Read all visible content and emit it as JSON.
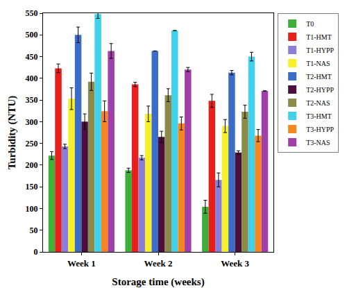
{
  "chart_data": {
    "type": "bar",
    "x_label": "Storage time (weeks)",
    "y_label": "Turbidity (NTU)",
    "categories": [
      "Week 1",
      "Week 2",
      "Week 3"
    ],
    "series": [
      {
        "name": "T0",
        "color": "#3fae3a",
        "values": [
          222,
          188,
          104
        ],
        "errors": [
          9,
          5,
          15
        ]
      },
      {
        "name": "T1-HMT",
        "color": "#e8201c",
        "values": [
          423,
          386,
          348
        ],
        "errors": [
          10,
          5,
          15
        ]
      },
      {
        "name": "T1-HYPP",
        "color": "#8a7fd6",
        "values": [
          243,
          217,
          166
        ],
        "errors": [
          5,
          5,
          16
        ]
      },
      {
        "name": "T1-NAS",
        "color": "#f5f02a",
        "values": [
          353,
          318,
          290
        ],
        "errors": [
          25,
          18,
          15
        ]
      },
      {
        "name": "T2-HMT",
        "color": "#3a6cc8",
        "values": [
          500,
          463,
          413
        ],
        "errors": [
          18,
          0,
          5
        ]
      },
      {
        "name": "T2-HYPP",
        "color": "#4a0f3c",
        "values": [
          300,
          265,
          229
        ],
        "errors": [
          18,
          13,
          4
        ]
      },
      {
        "name": "T2-NAS",
        "color": "#8c8a48",
        "values": [
          392,
          361,
          323
        ],
        "errors": [
          20,
          15,
          15
        ]
      },
      {
        "name": "T3-HMT",
        "color": "#40d2ea",
        "values": [
          548,
          510,
          450
        ],
        "errors": [
          10,
          0,
          10
        ]
      },
      {
        "name": "T3-HYPP",
        "color": "#f5871e",
        "values": [
          324,
          296,
          268
        ],
        "errors": [
          24,
          15,
          14
        ]
      },
      {
        "name": "T3-NAS",
        "color": "#a03fa8",
        "values": [
          463,
          420,
          371
        ],
        "errors": [
          17,
          5,
          0
        ]
      }
    ],
    "ylim": [
      0,
      550
    ],
    "yticks": [
      0,
      50,
      100,
      150,
      200,
      250,
      300,
      350,
      400,
      450,
      500,
      550
    ],
    "grid": false,
    "legend": "right"
  }
}
